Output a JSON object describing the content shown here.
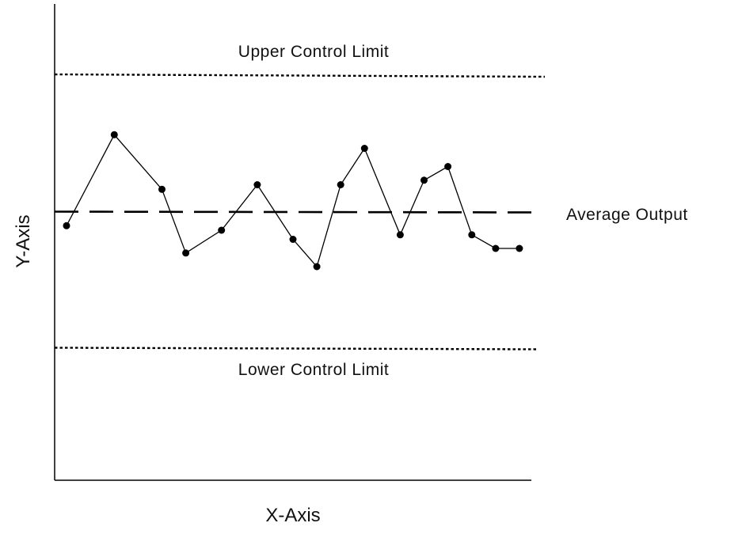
{
  "chart_data": {
    "type": "line",
    "xlabel": "X-Axis",
    "ylabel": "Y-Axis",
    "xlim": [
      0.5,
      20.5
    ],
    "ylim": [
      -6,
      6
    ],
    "grid": false,
    "series": [
      {
        "x": [
          1,
          3,
          5,
          6,
          7.5,
          9,
          10.5,
          11.5,
          12.5,
          13.5,
          15,
          16,
          17,
          18,
          19,
          20
        ],
        "values": [
          -0.3,
          1.7,
          0.5,
          -0.9,
          -0.4,
          0.6,
          -0.6,
          -1.2,
          0.6,
          1.4,
          -0.5,
          0.7,
          1.0,
          -0.5,
          -0.8,
          -0.8
        ]
      }
    ],
    "reference_lines": [
      {
        "label": "Upper Control Limit",
        "y": 3.0,
        "style": "dotted"
      },
      {
        "label": "Average Output",
        "y": 0,
        "style": "dashed"
      },
      {
        "label": "Lower Control Limit",
        "y": -3.0,
        "style": "dotted"
      }
    ]
  }
}
